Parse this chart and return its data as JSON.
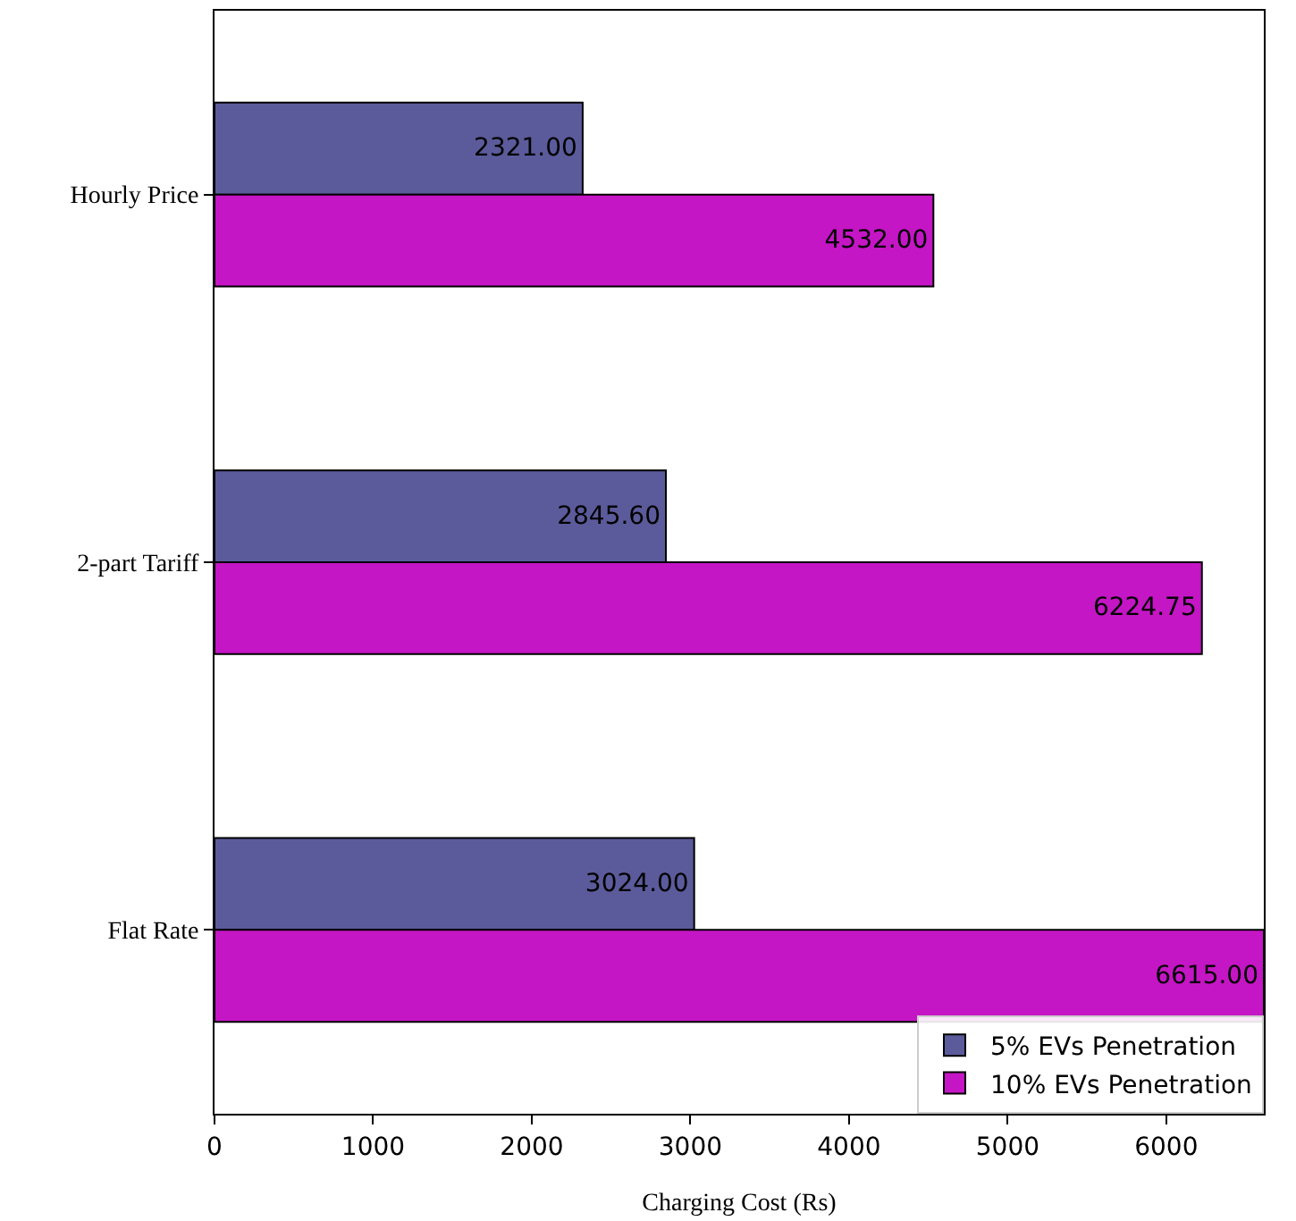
{
  "chart_data": {
    "type": "bar",
    "orientation": "horizontal",
    "xlabel": "Charging Cost (Rs)",
    "categories": [
      "Hourly Price",
      "2-part Tariff",
      "Flat Rate"
    ],
    "series": [
      {
        "name": "5% EVs Penetration",
        "color": "#5b5b9b",
        "values": [
          2321.0,
          2845.6,
          3024.0
        ],
        "value_labels": [
          "2321.00",
          "2845.60",
          "3024.00"
        ]
      },
      {
        "name": "10% EVs Penetration",
        "color": "#c416c4",
        "values": [
          4532.0,
          6224.75,
          6615.0
        ],
        "value_labels": [
          "4532.00",
          "6224.75",
          "6615.00"
        ]
      }
    ],
    "xlim": [
      0,
      6615
    ],
    "xticks": [
      0,
      1000,
      2000,
      3000,
      4000,
      5000,
      6000
    ],
    "grid": false,
    "legend": "bottom right"
  }
}
